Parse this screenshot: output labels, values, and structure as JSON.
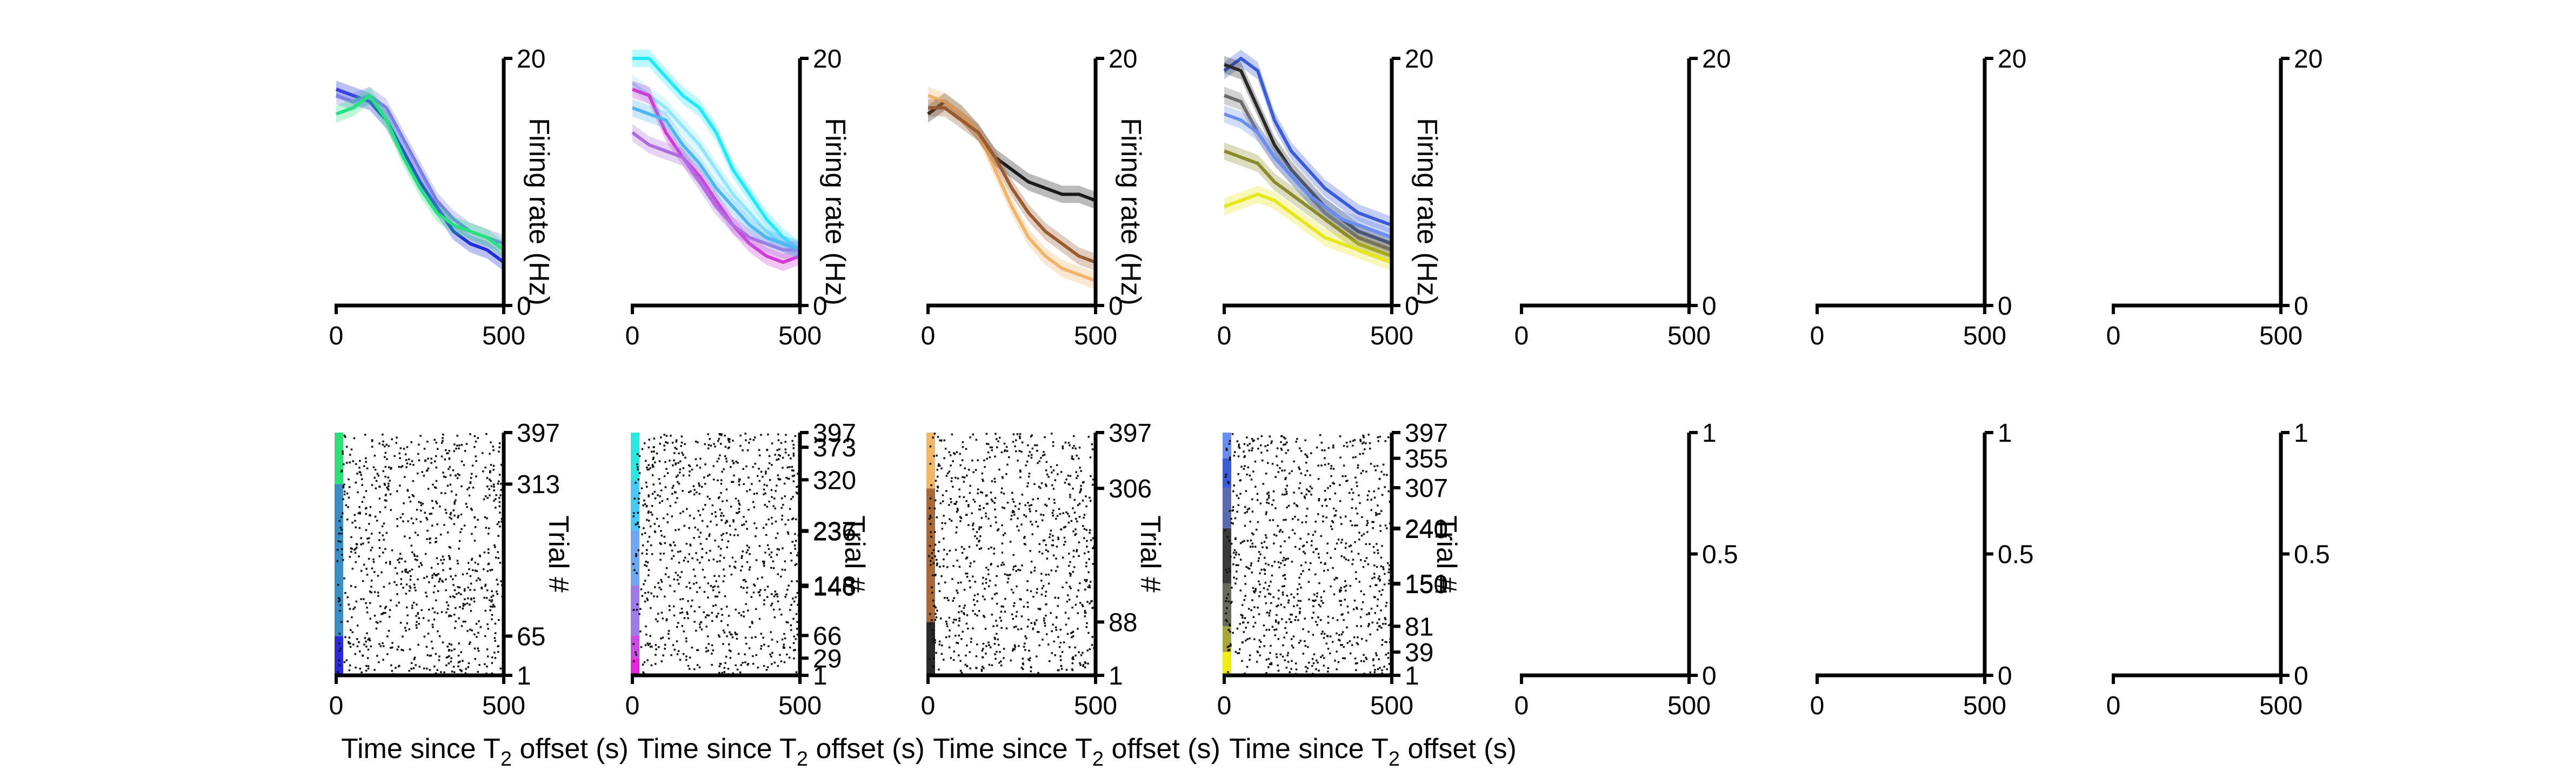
{
  "chart_data": [
    {
      "type": "line",
      "panel": "rate-1",
      "xlabel": "",
      "ylabel": "Firing rate (Hz)",
      "xlim": [
        0,
        500
      ],
      "ylim": [
        0,
        20
      ],
      "xticks": [
        "0",
        "500"
      ],
      "yticks": [
        "0",
        "20"
      ],
      "series": [
        {
          "color": "#1f2fd6",
          "x": [
            0,
            50,
            100,
            150,
            200,
            250,
            300,
            350,
            400,
            450,
            500
          ],
          "y": [
            17.5,
            17,
            16.5,
            15,
            12.5,
            10,
            8,
            6,
            5,
            4.5,
            3.5
          ]
        },
        {
          "color": "#7b7ee8",
          "x": [
            0,
            50,
            100,
            150,
            200,
            250,
            300,
            350,
            400,
            450,
            500
          ],
          "y": [
            17,
            16.5,
            17,
            16,
            13.5,
            11,
            8.5,
            7,
            6,
            5.5,
            5
          ]
        },
        {
          "color": "#27e07f",
          "x": [
            0,
            50,
            100,
            150,
            200,
            250,
            300,
            350,
            400,
            450,
            500
          ],
          "y": [
            15.5,
            16,
            17,
            15,
            12,
            9.5,
            7.5,
            6.5,
            6,
            5.5,
            4.5
          ]
        }
      ]
    },
    {
      "type": "line",
      "panel": "rate-2",
      "xlabel": "",
      "ylabel": "Firing rate (Hz)",
      "xlim": [
        0,
        500
      ],
      "ylim": [
        0,
        20
      ],
      "xticks": [
        "0",
        "500"
      ],
      "yticks": [
        "0",
        "20"
      ],
      "series": [
        {
          "color": "#22e8ff",
          "x": [
            0,
            50,
            100,
            150,
            200,
            250,
            300,
            350,
            400,
            450,
            500
          ],
          "y": [
            20,
            20,
            18.5,
            17,
            16,
            14,
            11,
            9,
            7,
            5.5,
            4.5
          ]
        },
        {
          "color": "#8fe6ff",
          "x": [
            0,
            50,
            100,
            150,
            200,
            250,
            300,
            350,
            400,
            450,
            500
          ],
          "y": [
            18,
            17,
            16,
            14.5,
            13,
            11,
            9,
            7.5,
            6,
            5,
            4.5
          ]
        },
        {
          "color": "#d23ad8",
          "x": [
            0,
            50,
            100,
            150,
            200,
            250,
            300,
            350,
            400,
            450,
            500
          ],
          "y": [
            17.5,
            17,
            14,
            12,
            10.5,
            8.5,
            6.5,
            5,
            4,
            3.5,
            4
          ]
        },
        {
          "color": "#b06de0",
          "x": [
            0,
            50,
            100,
            150,
            200,
            250,
            300,
            350,
            400,
            450,
            500
          ],
          "y": [
            14,
            13,
            12.5,
            12,
            10,
            8,
            6.5,
            5.5,
            5,
            4.5,
            4.5
          ]
        },
        {
          "color": "#4fb7f0",
          "x": [
            0,
            50,
            100,
            150,
            200,
            250,
            300,
            350,
            400,
            450,
            500
          ],
          "y": [
            16,
            15.5,
            15,
            13,
            11.5,
            9.5,
            8,
            6.5,
            5.5,
            5,
            4.5
          ]
        }
      ]
    },
    {
      "type": "line",
      "panel": "rate-3",
      "xlabel": "",
      "ylabel": "Firing rate (Hz)",
      "xlim": [
        0,
        500
      ],
      "ylim": [
        0,
        20
      ],
      "xticks": [
        "0",
        "500"
      ],
      "yticks": [
        "0",
        "20"
      ],
      "series": [
        {
          "color": "#1a1a1a",
          "x": [
            0,
            50,
            100,
            150,
            200,
            250,
            300,
            350,
            400,
            450,
            500
          ],
          "y": [
            15.5,
            16.5,
            15.5,
            14,
            12,
            11,
            10,
            9.5,
            9,
            9,
            8.5
          ]
        },
        {
          "color": "#f2b36a",
          "x": [
            0,
            50,
            100,
            150,
            200,
            250,
            300,
            350,
            400,
            450,
            500
          ],
          "y": [
            17,
            16.5,
            15.5,
            14,
            11,
            8,
            5.5,
            4,
            3,
            2.5,
            2
          ]
        },
        {
          "color": "#9a5a2e",
          "x": [
            0,
            50,
            100,
            150,
            200,
            250,
            300,
            350,
            400,
            450,
            500
          ],
          "y": [
            16,
            16,
            15,
            14,
            12,
            9.5,
            7.5,
            6,
            5,
            4,
            3.5
          ]
        }
      ]
    },
    {
      "type": "line",
      "panel": "rate-4",
      "xlabel": "",
      "ylabel": "Firing rate (Hz)",
      "xlim": [
        0,
        500
      ],
      "ylim": [
        0,
        20
      ],
      "xticks": [
        "0",
        "500"
      ],
      "yticks": [
        "0",
        "20"
      ],
      "series": [
        {
          "color": "#3b5bd8",
          "x": [
            0,
            50,
            100,
            150,
            200,
            250,
            300,
            350,
            400,
            450,
            500
          ],
          "y": [
            19,
            20,
            19,
            15,
            12.5,
            11,
            9.5,
            8.5,
            7.5,
            7,
            6.5
          ]
        },
        {
          "color": "#2a2a2a",
          "x": [
            0,
            50,
            100,
            150,
            200,
            250,
            300,
            350,
            400,
            450,
            500
          ],
          "y": [
            19.5,
            19,
            16,
            13,
            11,
            9.5,
            8,
            7,
            6,
            5.5,
            5
          ]
        },
        {
          "color": "#6a6a6a",
          "x": [
            0,
            50,
            100,
            150,
            200,
            250,
            300,
            350,
            400,
            450,
            500
          ],
          "y": [
            17,
            16.5,
            14,
            12,
            10.5,
            9,
            7.5,
            6.5,
            5.5,
            5,
            4.5
          ]
        },
        {
          "color": "#8a8a2a",
          "x": [
            0,
            50,
            100,
            150,
            200,
            250,
            300,
            350,
            400,
            450,
            500
          ],
          "y": [
            12.5,
            12,
            11.5,
            10,
            9,
            8,
            7,
            6,
            5,
            4.5,
            4
          ]
        },
        {
          "color": "#e6e61a",
          "x": [
            0,
            50,
            100,
            150,
            200,
            250,
            300,
            350,
            400,
            450,
            500
          ],
          "y": [
            8,
            8.5,
            9,
            8.5,
            7.5,
            6.5,
            5.5,
            5,
            4.5,
            4,
            3.5
          ]
        },
        {
          "color": "#6a8ef0",
          "x": [
            0,
            50,
            100,
            150,
            200,
            250,
            300,
            350,
            400,
            450,
            500
          ],
          "y": [
            15.5,
            15,
            14,
            12,
            10.5,
            9,
            8,
            7,
            6.5,
            6,
            5.5
          ]
        }
      ]
    },
    {
      "type": "line",
      "panel": "rate-5",
      "xlim": [
        0,
        500
      ],
      "ylim": [
        0,
        20
      ],
      "xticks": [
        "0",
        "500"
      ],
      "yticks": [
        "0",
        "20"
      ],
      "series": []
    },
    {
      "type": "line",
      "panel": "rate-6",
      "xlim": [
        0,
        500
      ],
      "ylim": [
        0,
        20
      ],
      "xticks": [
        "0",
        "500"
      ],
      "yticks": [
        "0",
        "20"
      ],
      "series": []
    },
    {
      "type": "line",
      "panel": "rate-7",
      "xlim": [
        0,
        500
      ],
      "ylim": [
        0,
        20
      ],
      "xticks": [
        "0",
        "500"
      ],
      "yticks": [
        "0",
        "20"
      ],
      "series": []
    },
    {
      "type": "scatter",
      "panel": "raster-1",
      "xlabel": "Time since T2 offset (s)",
      "ylabel": "Trial #",
      "xlim": [
        0,
        500
      ],
      "ylim": [
        1,
        397
      ],
      "xticks": [
        "0",
        "500"
      ],
      "yticks": [
        "1",
        "65",
        "313",
        "397"
      ],
      "condition_bands": [
        {
          "from": 1,
          "to": 65,
          "color": "#2a2ad6"
        },
        {
          "from": 65,
          "to": 313,
          "color": "#3a8fc0"
        },
        {
          "from": 313,
          "to": 397,
          "color": "#2fe07a"
        }
      ],
      "spike_density": 900
    },
    {
      "type": "scatter",
      "panel": "raster-2",
      "xlabel": "Time since T2 offset (s)",
      "ylabel": "Trial #",
      "xlim": [
        0,
        500
      ],
      "ylim": [
        1,
        397
      ],
      "xticks": [
        "0",
        "500"
      ],
      "yticks": [
        "1",
        "29",
        "66",
        "146",
        "148",
        "236",
        "237",
        "320",
        "373",
        "397"
      ],
      "condition_bands": [
        {
          "from": 1,
          "to": 29,
          "color": "#e02ad8"
        },
        {
          "from": 29,
          "to": 66,
          "color": "#c94ce0"
        },
        {
          "from": 66,
          "to": 148,
          "color": "#9d7ce6"
        },
        {
          "from": 148,
          "to": 237,
          "color": "#6fa8ee"
        },
        {
          "from": 237,
          "to": 320,
          "color": "#48c8f2"
        },
        {
          "from": 320,
          "to": 397,
          "color": "#2ee8e0"
        }
      ],
      "spike_density": 900
    },
    {
      "type": "scatter",
      "panel": "raster-3",
      "xlabel": "Time since T2 offset (s)",
      "ylabel": "Trial #",
      "xlim": [
        0,
        500
      ],
      "ylim": [
        1,
        397
      ],
      "xticks": [
        "0",
        "500"
      ],
      "yticks": [
        "1",
        "88",
        "306",
        "397"
      ],
      "condition_bands": [
        {
          "from": 1,
          "to": 88,
          "color": "#2a2a2a"
        },
        {
          "from": 88,
          "to": 306,
          "color": "#a86a3a"
        },
        {
          "from": 306,
          "to": 397,
          "color": "#f0b66a"
        }
      ],
      "spike_density": 900
    },
    {
      "type": "scatter",
      "panel": "raster-4",
      "xlabel": "Time since T2 offset (s)",
      "ylabel": "Trial #",
      "xlim": [
        0,
        500
      ],
      "ylim": [
        1,
        397
      ],
      "xticks": [
        "0",
        "500"
      ],
      "yticks": [
        "1",
        "39",
        "81",
        "150",
        "151",
        "240",
        "241",
        "307",
        "355",
        "397"
      ],
      "condition_bands": [
        {
          "from": 1,
          "to": 39,
          "color": "#ecec1a"
        },
        {
          "from": 39,
          "to": 81,
          "color": "#a6a63a"
        },
        {
          "from": 81,
          "to": 151,
          "color": "#6a6a5a"
        },
        {
          "from": 151,
          "to": 241,
          "color": "#3a3a3a"
        },
        {
          "from": 241,
          "to": 307,
          "color": "#5a6ab0"
        },
        {
          "from": 307,
          "to": 355,
          "color": "#3b5bd8"
        },
        {
          "from": 355,
          "to": 397,
          "color": "#6a8ef0"
        }
      ],
      "spike_density": 900
    },
    {
      "type": "scatter",
      "panel": "raster-5",
      "xlim": [
        0,
        500
      ],
      "ylim": [
        0,
        1
      ],
      "xticks": [
        "0",
        "500"
      ],
      "yticks": [
        "0",
        "0.5",
        "1"
      ]
    },
    {
      "type": "scatter",
      "panel": "raster-6",
      "xlim": [
        0,
        500
      ],
      "ylim": [
        0,
        1
      ],
      "xticks": [
        "0",
        "500"
      ],
      "yticks": [
        "0",
        "0.5",
        "1"
      ]
    },
    {
      "type": "scatter",
      "panel": "raster-7",
      "xlim": [
        0,
        500
      ],
      "ylim": [
        0,
        1
      ],
      "xticks": [
        "0",
        "500"
      ],
      "yticks": [
        "0",
        "0.5",
        "1"
      ]
    }
  ]
}
